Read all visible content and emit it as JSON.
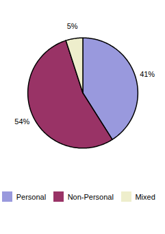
{
  "chart_data": {
    "type": "pie",
    "categories": [
      "Personal",
      "Non-Personal",
      "Mixed"
    ],
    "values": [
      41,
      54,
      5
    ],
    "value_labels": [
      "41%",
      "54%",
      "5%"
    ],
    "colors": [
      "#9999dd",
      "#993366",
      "#eeeecc"
    ],
    "data_labels": true,
    "legend": "bottom"
  }
}
